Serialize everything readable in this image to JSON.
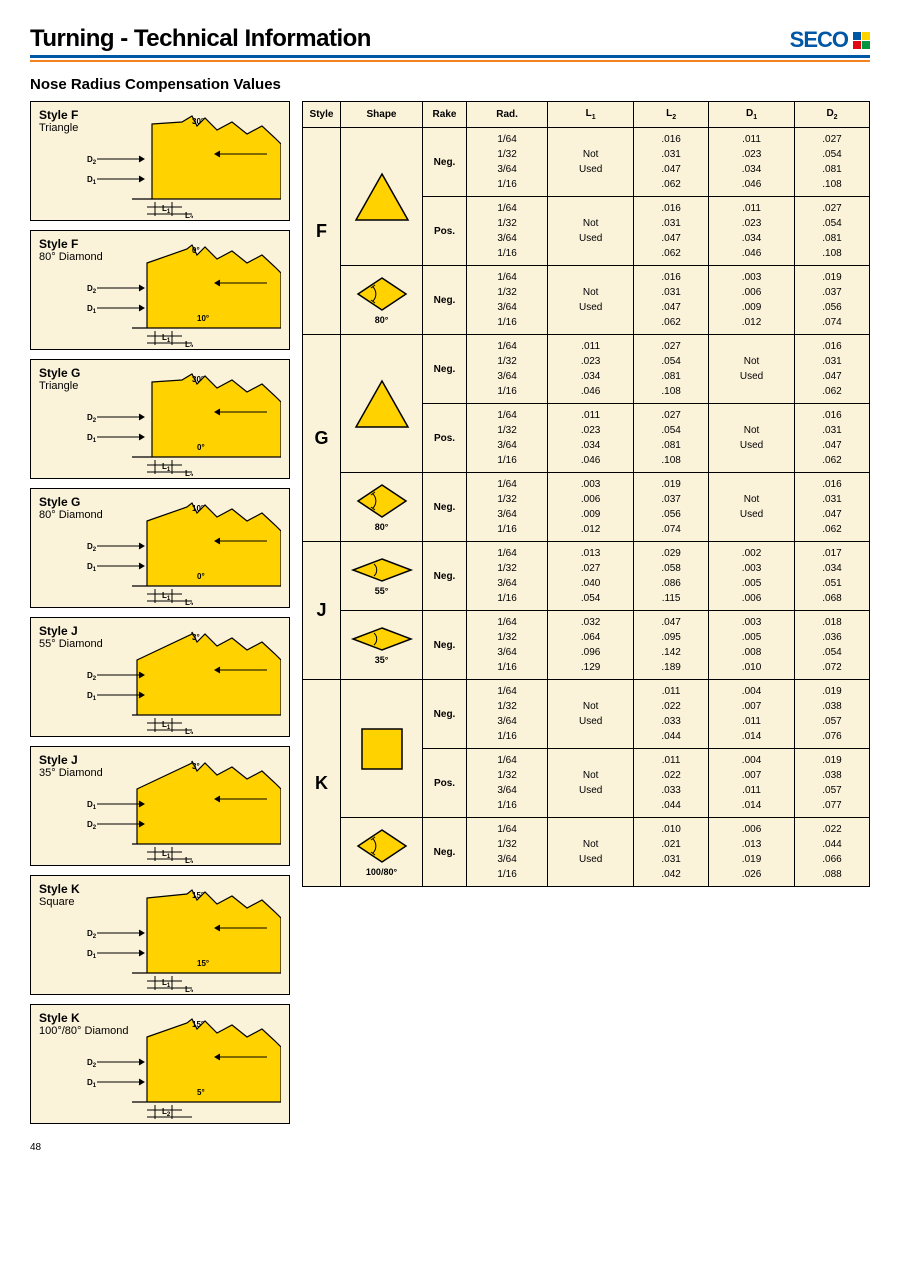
{
  "page_title": "Turning - Technical Information",
  "logo_text": "SECO",
  "logo_colors": [
    "#0057a6",
    "#ffd200",
    "#e30613",
    "#009640"
  ],
  "section_title": "Nose Radius Compensation Values",
  "page_number": "48",
  "colors": {
    "card_bg": "#faf2d9",
    "shape_fill": "#ffd200",
    "shape_stroke": "#000000",
    "header_blue": "#0057a6",
    "header_orange": "#f58220"
  },
  "left_styles": [
    {
      "title": "Style F",
      "subtitle": "Triangle",
      "shape": "triangle",
      "angles": [
        "30°"
      ],
      "dims": [
        "D₂",
        "D₁",
        "L₁",
        "L₂"
      ]
    },
    {
      "title": "Style F",
      "subtitle": "80° Diamond",
      "shape": "diamond80",
      "angles": [
        "0°",
        "10°"
      ],
      "dims": [
        "D₂",
        "D₁",
        "L₁",
        "L₂"
      ]
    },
    {
      "title": "Style G",
      "subtitle": "Triangle",
      "shape": "triangle",
      "angles": [
        "30°",
        "0°"
      ],
      "dims": [
        "D₂",
        "D₁",
        "L₁",
        "L₂"
      ]
    },
    {
      "title": "Style G",
      "subtitle": "80° Diamond",
      "shape": "diamond80",
      "angles": [
        "10°",
        "0°"
      ],
      "dims": [
        "D₂",
        "D₁",
        "L₁",
        "L₂"
      ]
    },
    {
      "title": "Style J",
      "subtitle": "55° Diamond",
      "shape": "diamond55",
      "angles": [
        "3°"
      ],
      "dims": [
        "D₂",
        "D₁",
        "L₁",
        "L₂"
      ]
    },
    {
      "title": "Style J",
      "subtitle": "35° Diamond",
      "shape": "diamond35",
      "angles": [
        "3°"
      ],
      "dims": [
        "D₁",
        "D₂",
        "L₁",
        "L₂"
      ]
    },
    {
      "title": "Style K",
      "subtitle": "Square",
      "shape": "square",
      "angles": [
        "15°",
        "15°"
      ],
      "dims": [
        "D₂",
        "D₁",
        "L₁",
        "L₂"
      ]
    },
    {
      "title": "Style K",
      "subtitle": "100°/80° Diamond",
      "shape": "diamond100",
      "angles": [
        "15°",
        "5°"
      ],
      "dims": [
        "D₂",
        "D₁",
        "L₂"
      ]
    }
  ],
  "table": {
    "headers": [
      "Style",
      "Shape",
      "Rake",
      "Rad.",
      "L₁",
      "L₂",
      "D₁",
      "D₂"
    ],
    "rad_vals": "1/64\n1/32\n3/64\n1/16",
    "groups": [
      {
        "style": "F",
        "rows": [
          {
            "shape": "triangle",
            "shape_label": "",
            "rake": "Neg.",
            "rowspan_shape": 2,
            "L1": "Not\nUsed",
            "L2": ".016\n.031\n.047\n.062",
            "D1": ".011\n.023\n.034\n.046",
            "D2": ".027\n.054\n.081\n.108"
          },
          {
            "rake": "Pos.",
            "L1": "Not\nUsed",
            "L2": ".016\n.031\n.047\n.062",
            "D1": ".011\n.023\n.034\n.046",
            "D2": ".027\n.054\n.081\n.108"
          },
          {
            "shape": "diamond",
            "shape_label": "80°",
            "rake": "Neg.",
            "L1": "Not\nUsed",
            "L2": ".016\n.031\n.047\n.062",
            "D1": ".003\n.006\n.009\n.012",
            "D2": ".019\n.037\n.056\n.074"
          }
        ]
      },
      {
        "style": "G",
        "rows": [
          {
            "shape": "triangle",
            "shape_label": "",
            "rake": "Neg.",
            "rowspan_shape": 2,
            "L1": ".011\n.023\n.034\n.046",
            "L2": ".027\n.054\n.081\n.108",
            "D1": "Not\nUsed",
            "D2": ".016\n.031\n.047\n.062"
          },
          {
            "rake": "Pos.",
            "L1": ".011\n.023\n.034\n.046",
            "L2": ".027\n.054\n.081\n.108",
            "D1": "Not\nUsed",
            "D2": ".016\n.031\n.047\n.062"
          },
          {
            "shape": "diamond",
            "shape_label": "80°",
            "rake": "Neg.",
            "L1": ".003\n.006\n.009\n.012",
            "L2": ".019\n.037\n.056\n.074",
            "D1": "Not\nUsed",
            "D2": ".016\n.031\n.047\n.062"
          }
        ]
      },
      {
        "style": "J",
        "rows": [
          {
            "shape": "diamond_thin",
            "shape_label": "55°",
            "rake": "Neg.",
            "L1": ".013\n.027\n.040\n.054",
            "L2": ".029\n.058\n.086\n.115",
            "D1": ".002\n.003\n.005\n.006",
            "D2": ".017\n.034\n.051\n.068"
          },
          {
            "shape": "diamond_thin",
            "shape_label": "35°",
            "rake": "Neg.",
            "L1": ".032\n.064\n.096\n.129",
            "L2": ".047\n.095\n.142\n.189",
            "D1": ".003\n.005\n.008\n.010",
            "D2": ".018\n.036\n.054\n.072"
          }
        ]
      },
      {
        "style": "K",
        "rows": [
          {
            "shape": "square",
            "shape_label": "",
            "rake": "Neg.",
            "rowspan_shape": 2,
            "L1": "Not\nUsed",
            "L2": ".011\n.022\n.033\n.044",
            "D1": ".004\n.007\n.011\n.014",
            "D2": ".019\n.038\n.057\n.076"
          },
          {
            "rake": "Pos.",
            "L1": "Not\nUsed",
            "L2": ".011\n.022\n.033\n.044",
            "D1": ".004\n.007\n.011\n.014",
            "D2": ".019\n.038\n.057\n.077"
          },
          {
            "shape": "diamond",
            "shape_label": "100/80°",
            "rake": "Neg.",
            "L1": "Not\nUsed",
            "L2": ".010\n.021\n.031\n.042",
            "D1": ".006\n.013\n.019\n.026",
            "D2": ".022\n.044\n.066\n.088"
          }
        ]
      }
    ]
  }
}
